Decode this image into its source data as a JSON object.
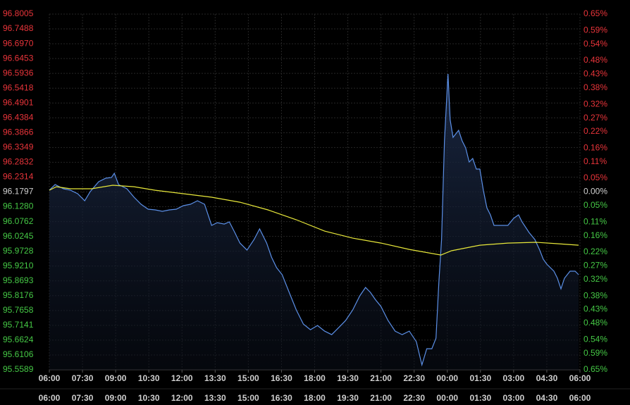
{
  "chart_data": {
    "type": "line",
    "xlim": [
      0,
      24
    ],
    "xticks": [
      {
        "value": 0,
        "label": "06:00"
      },
      {
        "value": 1.5,
        "label": "07:30"
      },
      {
        "value": 3,
        "label": "09:00"
      },
      {
        "value": 4.5,
        "label": "10:30"
      },
      {
        "value": 6,
        "label": "12:00"
      },
      {
        "value": 7.5,
        "label": "13:30"
      },
      {
        "value": 9,
        "label": "15:00"
      },
      {
        "value": 10.5,
        "label": "16:30"
      },
      {
        "value": 12,
        "label": "18:00"
      },
      {
        "value": 13.5,
        "label": "19:30"
      },
      {
        "value": 15,
        "label": "21:00"
      },
      {
        "value": 16.5,
        "label": "22:30"
      },
      {
        "value": 18,
        "label": "00:00"
      },
      {
        "value": 19.5,
        "label": "01:30"
      },
      {
        "value": 21,
        "label": "03:00"
      },
      {
        "value": 22.5,
        "label": "04:30"
      },
      {
        "value": 24,
        "label": "06:00"
      }
    ],
    "ylim": [
      95.5589,
      96.8005
    ],
    "yticks": [
      96.8005,
      96.7488,
      {
        "value": 96.697,
        "label": "96.6970"
      },
      96.6453,
      96.5936,
      96.5418,
      96.4901,
      96.4384,
      96.3866,
      96.3349,
      96.2832,
      96.2314,
      96.1797,
      {
        "value": 96.128,
        "label": "96.1280"
      },
      96.0762,
      96.0245,
      95.9728,
      {
        "value": 95.921,
        "label": "95.9210"
      },
      95.8693,
      95.8176,
      95.7658,
      95.7141,
      95.6624,
      95.6106,
      95.5589
    ],
    "base_value": 96.1797,
    "y2lim": [
      -0.65,
      0.65
    ],
    "y2ticks": [
      {
        "value": 0.65,
        "label": "0.65%"
      },
      {
        "value": 0.59,
        "label": "0.59%"
      },
      {
        "value": 0.54,
        "label": "0.54%"
      },
      {
        "value": 0.48,
        "label": "0.48%"
      },
      {
        "value": 0.43,
        "label": "0.43%"
      },
      {
        "value": 0.38,
        "label": "0.38%"
      },
      {
        "value": 0.32,
        "label": "0.32%"
      },
      {
        "value": 0.27,
        "label": "0.27%"
      },
      {
        "value": 0.22,
        "label": "0.22%"
      },
      {
        "value": 0.16,
        "label": "0.16%"
      },
      {
        "value": 0.11,
        "label": "0.11%"
      },
      {
        "value": 0.05,
        "label": "0.05%"
      },
      {
        "value": 0,
        "label": "0.00%"
      },
      {
        "value": -0.05,
        "label": "0.05%"
      },
      {
        "value": -0.11,
        "label": "0.11%"
      },
      {
        "value": -0.16,
        "label": "0.16%"
      },
      {
        "value": -0.22,
        "label": "0.22%"
      },
      {
        "value": -0.27,
        "label": "0.27%"
      },
      {
        "value": -0.32,
        "label": "0.32%"
      },
      {
        "value": -0.38,
        "label": "0.38%"
      },
      {
        "value": -0.43,
        "label": "0.43%"
      },
      {
        "value": -0.48,
        "label": "0.48%"
      },
      {
        "value": -0.54,
        "label": "0.54%"
      },
      {
        "value": -0.59,
        "label": "0.59%"
      },
      {
        "value": -0.65,
        "label": "0.65%"
      }
    ],
    "up_color": "#e8343a",
    "down_color": "#45c845",
    "neutral_color": "#d0d0d0",
    "grid": true,
    "series": [
      {
        "color": "#5b8fe6",
        "fill": true,
        "x": [
          0,
          0.26,
          0.64,
          0.96,
          1.28,
          1.6,
          1.85,
          2.23,
          2.55,
          2.81,
          2.94,
          3.13,
          3.51,
          3.83,
          4.15,
          4.47,
          4.79,
          5.11,
          5.43,
          5.74,
          6.06,
          6.38,
          6.7,
          7.02,
          7.34,
          7.6,
          7.91,
          8.14,
          8.39,
          8.62,
          8.94,
          9.26,
          9.51,
          9.83,
          10.05,
          10.28,
          10.53,
          10.85,
          11.17,
          11.49,
          11.81,
          12.13,
          12.45,
          12.77,
          13.09,
          13.4,
          13.72,
          14.04,
          14.3,
          14.52,
          14.74,
          15,
          15.32,
          15.64,
          15.96,
          16.28,
          16.6,
          16.85,
          17.07,
          17.3,
          17.49,
          17.62,
          17.74,
          17.87,
          18.03,
          18.13,
          18.26,
          18.51,
          18.67,
          18.83,
          18.99,
          19.15,
          19.31,
          19.47,
          19.63,
          19.79,
          19.95,
          20.11,
          20.43,
          20.74,
          21,
          21.22,
          21.38,
          21.7,
          21.96,
          22.18,
          22.34,
          22.5,
          22.82,
          22.98,
          23.14,
          23.3,
          23.55,
          23.78,
          23.94
        ],
        "values": [
          96.1857,
          96.2054,
          96.1907,
          96.1857,
          96.1735,
          96.1489,
          96.1808,
          96.2153,
          96.2276,
          96.23,
          96.2448,
          96.2054,
          96.1907,
          96.1612,
          96.1366,
          96.1194,
          96.1169,
          96.112,
          96.1169,
          96.1194,
          96.1317,
          96.1366,
          96.1489,
          96.1366,
          96.0628,
          96.0726,
          96.0677,
          96.0751,
          96.0382,
          96.0013,
          95.9767,
          96.0136,
          96.0505,
          96.0013,
          95.9521,
          95.9153,
          95.8907,
          95.8292,
          95.7677,
          95.7185,
          95.6989,
          95.7136,
          95.6939,
          95.6817,
          95.7062,
          95.7308,
          95.7677,
          95.8169,
          95.8464,
          95.8292,
          95.8046,
          95.78,
          95.7308,
          95.6939,
          95.6817,
          95.6939,
          95.6571,
          95.5759,
          95.6325,
          95.6325,
          95.6694,
          95.8661,
          96.0136,
          96.3579,
          96.5915,
          96.4316,
          96.3702,
          96.3948,
          96.3579,
          96.3333,
          96.2841,
          96.2964,
          96.2595,
          96.2595,
          96.1857,
          96.1243,
          96.0997,
          96.0628,
          96.0628,
          96.0628,
          96.0874,
          96.0997,
          96.0751,
          96.0382,
          96.0136,
          95.9767,
          95.9448,
          95.9276,
          95.903,
          95.8784,
          95.8415,
          95.8784,
          95.903,
          95.903,
          95.8907
        ]
      },
      {
        "color": "#e8e83a",
        "fill": false,
        "x": [
          0,
          0.32,
          0.96,
          1.91,
          2.87,
          3.83,
          4.79,
          6.06,
          7.34,
          8.62,
          9.89,
          11.17,
          12.45,
          13.72,
          15,
          16.28,
          17.71,
          18.19,
          19.47,
          20.74,
          22.02,
          22.98,
          23.94
        ],
        "values": [
          96.1857,
          96.198,
          96.1907,
          96.1907,
          96.203,
          96.198,
          96.1857,
          96.1735,
          96.1612,
          96.1439,
          96.1169,
          96.0825,
          96.0431,
          96.0185,
          96.0013,
          95.9792,
          95.9595,
          95.9743,
          95.9939,
          96.0013,
          96.0038,
          95.9989,
          95.9939
        ]
      }
    ]
  }
}
